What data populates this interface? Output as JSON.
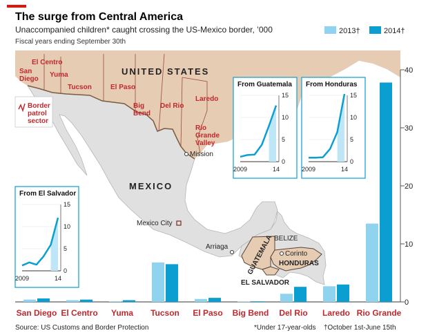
{
  "header": {
    "title": "The surge from Central America",
    "subtitle": "Unaccompanied children* caught crossing the US-Mexico border, ’000",
    "note": "Fiscal years ending September 30th"
  },
  "legend": [
    {
      "label": "2013†",
      "color": "#8fd3ef"
    },
    {
      "label": "2014†",
      "color": "#0b9ed1"
    }
  ],
  "footer": {
    "source": "Source: US Customs and Border Protection",
    "footnote1": "*Under 17-year-olds",
    "footnote2": "†October 1st-June 15th"
  },
  "map": {
    "country_us": "UNITED STATES",
    "country_mexico": "MEXICO",
    "sectors": [
      "El Centro",
      "San Diego",
      "Yuma",
      "Tucson",
      "El Paso",
      "Big Bend",
      "Del Rio",
      "Laredo",
      "Rio Grande Valley"
    ],
    "cities": [
      "Mission",
      "Mexico City",
      "Arriaga",
      "Corinto"
    ],
    "central_america": [
      "BELIZE",
      "GUATEMALA",
      "HONDURAS",
      "EL SALVADOR"
    ],
    "key_label": "Border patrol sector"
  },
  "colors": {
    "bar2013": "#8fd3ef",
    "bar2014": "#0b9ed1",
    "label_red": "#c0282d",
    "land_mx": "#e0e0e0",
    "land_us": "#e7ccb4",
    "border": "#8b6a4e"
  },
  "chart_data": [
    {
      "type": "bar",
      "categories": [
        "San Diego",
        "El Centro",
        "Yuma",
        "Tucson",
        "El Paso",
        "Big Bend",
        "Del Rio",
        "Laredo",
        "Rio Grande"
      ],
      "series": [
        {
          "name": "2013†",
          "values": [
            0.4,
            0.3,
            0.1,
            6.8,
            0.5,
            0.05,
            1.4,
            2.7,
            13.5
          ]
        },
        {
          "name": "2014†",
          "values": [
            0.6,
            0.4,
            0.3,
            6.5,
            0.7,
            0.1,
            2.6,
            3.0,
            37.8
          ]
        }
      ],
      "ylim": [
        0,
        40
      ],
      "yticks": [
        0,
        10,
        20,
        30,
        40
      ]
    },
    {
      "type": "line",
      "title": "From Guatemala",
      "x": [
        2009,
        2010,
        2011,
        2012,
        2013,
        2014
      ],
      "values": [
        1.1,
        1.5,
        1.6,
        3.8,
        8.1,
        12.7
      ],
      "xticks": [
        "2009",
        "14"
      ],
      "ylim": [
        0,
        15
      ],
      "yticks": [
        0,
        5,
        10,
        15
      ]
    },
    {
      "type": "line",
      "title": "From Honduras",
      "x": [
        2009,
        2010,
        2011,
        2012,
        2013,
        2014
      ],
      "values": [
        0.9,
        0.9,
        1.0,
        2.9,
        6.7,
        15.3
      ],
      "xticks": [
        "2009",
        "14"
      ],
      "ylim": [
        0,
        15
      ],
      "yticks": [
        0,
        5,
        10,
        15
      ]
    },
    {
      "type": "line",
      "title": "From El Salvador",
      "x": [
        2009,
        2010,
        2011,
        2012,
        2013,
        2014
      ],
      "values": [
        1.2,
        1.9,
        1.4,
        3.3,
        5.9,
        12.0
      ],
      "xticks": [
        "2009",
        "14"
      ],
      "ylim": [
        0,
        15
      ],
      "yticks": [
        0,
        5,
        10,
        15
      ]
    }
  ]
}
